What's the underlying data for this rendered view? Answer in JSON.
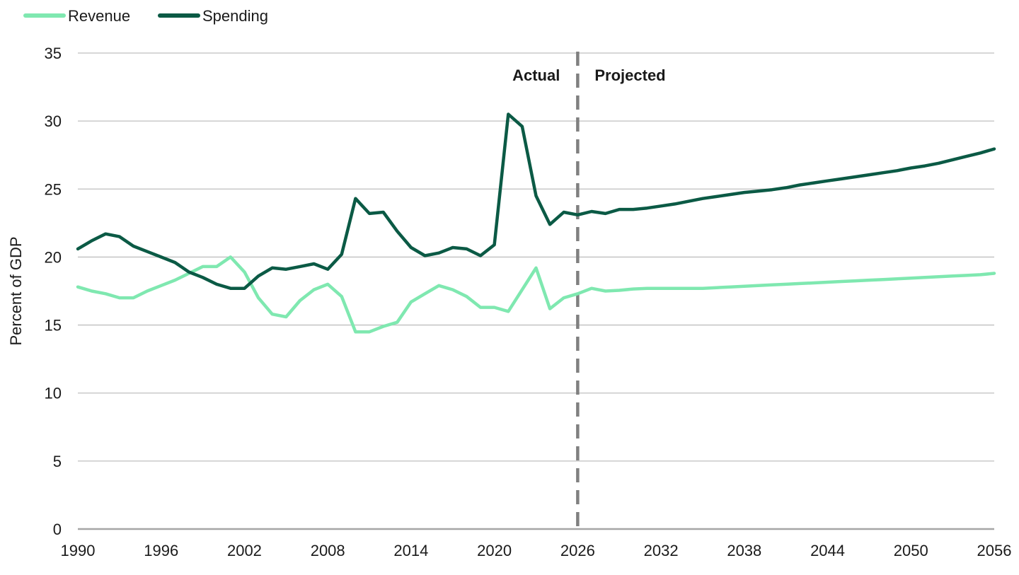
{
  "chart_data": {
    "type": "line",
    "ylabel": "Percent of GDP",
    "xlabel": "",
    "ylim": [
      0,
      35
    ],
    "xlim": [
      1990,
      2056
    ],
    "yticks": [
      0,
      5,
      10,
      15,
      20,
      25,
      30,
      35
    ],
    "xticks": [
      1990,
      1996,
      2002,
      2008,
      2014,
      2020,
      2026,
      2032,
      2038,
      2044,
      2050,
      2056
    ],
    "grid": "horizontal",
    "legend_position": "top-left",
    "divider_year": 2026,
    "annotations": {
      "left": "Actual",
      "right": "Projected"
    },
    "colors": {
      "revenue": "#7fe8b0",
      "spending": "#0b5a45",
      "divider": "#808080",
      "grid": "#bfbfbf",
      "axis": "#a6a6a6"
    },
    "years": [
      1990,
      1991,
      1992,
      1993,
      1994,
      1995,
      1996,
      1997,
      1998,
      1999,
      2000,
      2001,
      2002,
      2003,
      2004,
      2005,
      2006,
      2007,
      2008,
      2009,
      2010,
      2011,
      2012,
      2013,
      2014,
      2015,
      2016,
      2017,
      2018,
      2019,
      2020,
      2021,
      2022,
      2023,
      2024,
      2025,
      2026,
      2027,
      2028,
      2029,
      2030,
      2031,
      2032,
      2033,
      2034,
      2035,
      2036,
      2037,
      2038,
      2039,
      2040,
      2041,
      2042,
      2043,
      2044,
      2045,
      2046,
      2047,
      2048,
      2049,
      2050,
      2051,
      2052,
      2053,
      2054,
      2055,
      2056
    ],
    "series": [
      {
        "name": "Revenue",
        "key": "revenue",
        "values": [
          17.8,
          17.5,
          17.3,
          17.0,
          17.0,
          17.5,
          17.9,
          18.3,
          18.8,
          19.3,
          19.3,
          20.0,
          18.9,
          17.0,
          15.8,
          15.6,
          16.8,
          17.6,
          18.0,
          17.1,
          14.5,
          14.5,
          14.9,
          15.2,
          16.7,
          17.3,
          17.9,
          17.6,
          17.1,
          16.3,
          16.3,
          16.0,
          17.6,
          19.2,
          16.2,
          17.0,
          17.3,
          17.7,
          17.5,
          17.55,
          17.65,
          17.7,
          17.7,
          17.7,
          17.7,
          17.7,
          17.75,
          17.8,
          17.85,
          17.9,
          17.95,
          18.0,
          18.05,
          18.1,
          18.15,
          18.2,
          18.25,
          18.3,
          18.35,
          18.4,
          18.45,
          18.5,
          18.55,
          18.6,
          18.65,
          18.7,
          18.8
        ]
      },
      {
        "name": "Spending",
        "key": "spending",
        "values": [
          20.6,
          21.2,
          21.7,
          21.5,
          20.8,
          20.4,
          20.0,
          19.6,
          18.9,
          18.5,
          18.0,
          17.7,
          17.7,
          18.6,
          19.2,
          19.1,
          19.3,
          19.5,
          19.1,
          20.2,
          24.3,
          23.2,
          23.3,
          21.9,
          20.7,
          20.1,
          20.3,
          20.7,
          20.6,
          20.1,
          20.9,
          30.5,
          29.6,
          24.5,
          22.4,
          23.3,
          23.1,
          23.35,
          23.2,
          23.5,
          23.5,
          23.6,
          23.75,
          23.9,
          24.1,
          24.3,
          24.45,
          24.6,
          24.75,
          24.85,
          24.95,
          25.1,
          25.3,
          25.45,
          25.6,
          25.75,
          25.9,
          26.05,
          26.2,
          26.35,
          26.55,
          26.7,
          26.9,
          27.15,
          27.4,
          27.65,
          27.95
        ]
      }
    ]
  }
}
